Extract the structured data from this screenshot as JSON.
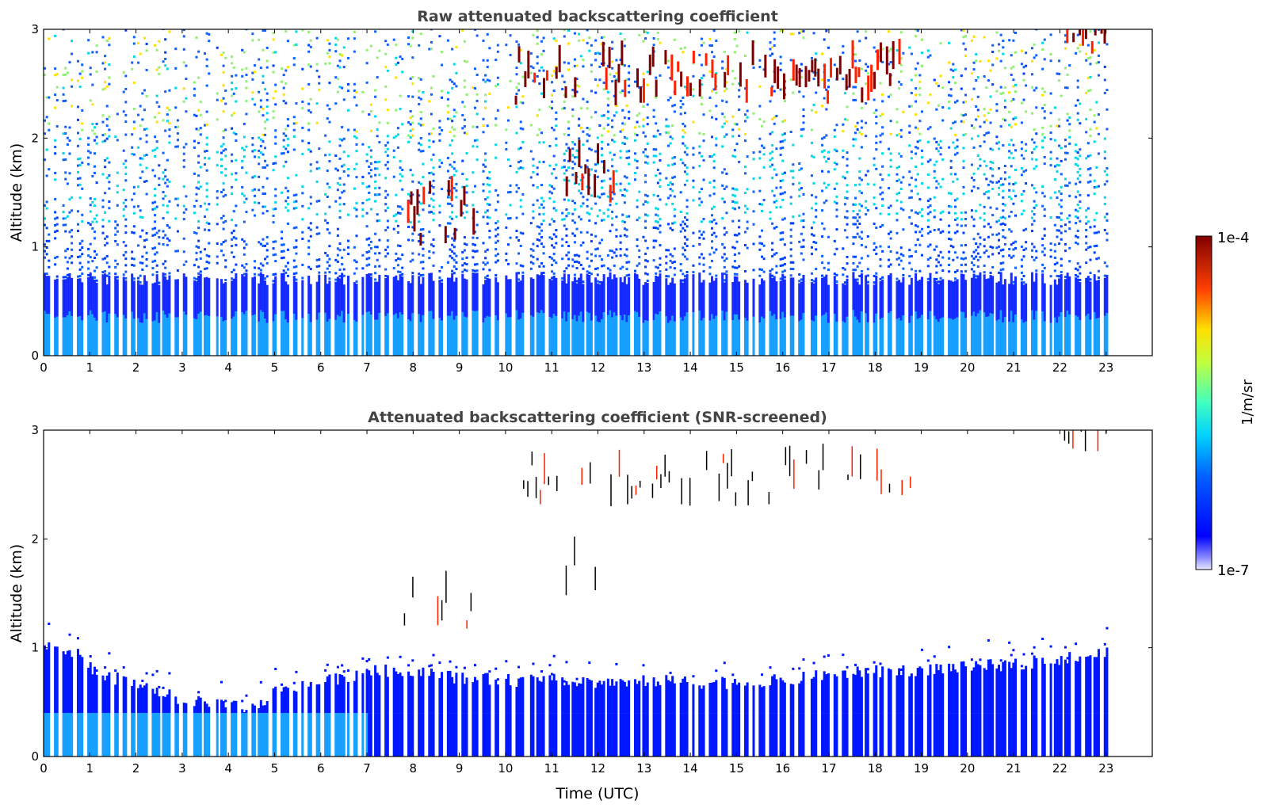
{
  "chart_data": [
    {
      "type": "heatmap",
      "title": "Raw attenuated backscattering coefficient",
      "xlabel": "",
      "ylabel": "Altitude (km)",
      "xlim": [
        0,
        24
      ],
      "ylim": [
        0,
        3
      ],
      "x_ticks": [
        "0",
        "1",
        "2",
        "3",
        "4",
        "5",
        "6",
        "7",
        "8",
        "9",
        "10",
        "11",
        "12",
        "13",
        "14",
        "15",
        "16",
        "17",
        "18",
        "19",
        "20",
        "21",
        "22",
        "23"
      ],
      "y_ticks": [
        "0",
        "1",
        "2",
        "3"
      ],
      "data_end_hour": 23,
      "description_regions": [
        {
          "feature": "surface aerosol layer",
          "x_range": [
            0,
            23
          ],
          "altitude_top_km": 0.5,
          "level": "low"
        },
        {
          "feature": "rising aerosol/cloud layer",
          "x_range": [
            7.8,
            9.5
          ],
          "altitude_km": [
            1.0,
            1.5
          ],
          "level": "high"
        },
        {
          "feature": "cloud layer",
          "x_range": [
            10.2,
            18.8
          ],
          "altitude_km": [
            2.3,
            2.7
          ],
          "level": "high"
        },
        {
          "feature": "lower cloud",
          "x_range": [
            11.3,
            12.4
          ],
          "altitude_km": [
            1.4,
            1.8
          ],
          "level": "high"
        },
        {
          "feature": "high cloud",
          "x_range": [
            22.0,
            23.0
          ],
          "altitude_km": [
            2.75,
            3.0
          ],
          "level": "high"
        }
      ]
    },
    {
      "type": "heatmap",
      "title": "Attenuated backscattering coefficient (SNR-screened)",
      "xlabel": "Time (UTC)",
      "ylabel": "Altitude (km)",
      "xlim": [
        0,
        24
      ],
      "ylim": [
        0,
        3
      ],
      "x_ticks": [
        "0",
        "1",
        "2",
        "3",
        "4",
        "5",
        "6",
        "7",
        "8",
        "9",
        "10",
        "11",
        "12",
        "13",
        "14",
        "15",
        "16",
        "17",
        "18",
        "19",
        "20",
        "21",
        "22",
        "23"
      ],
      "y_ticks": [
        "0",
        "1",
        "2",
        "3"
      ],
      "boundary_layer_top_km": [
        [
          0,
          1.0
        ],
        [
          0.8,
          0.95
        ],
        [
          1.0,
          0.8
        ],
        [
          2.0,
          0.65
        ],
        [
          3.0,
          0.52
        ],
        [
          4.0,
          0.46
        ],
        [
          4.6,
          0.43
        ],
        [
          5.0,
          0.62
        ],
        [
          6.0,
          0.68
        ],
        [
          7.0,
          0.78
        ],
        [
          8.0,
          0.8
        ],
        [
          9.0,
          0.72
        ],
        [
          10.0,
          0.7
        ],
        [
          11.0,
          0.7
        ],
        [
          12.0,
          0.68
        ],
        [
          13.0,
          0.7
        ],
        [
          14.0,
          0.68
        ],
        [
          15.0,
          0.68
        ],
        [
          16.0,
          0.7
        ],
        [
          17.0,
          0.75
        ],
        [
          18.0,
          0.78
        ],
        [
          19.0,
          0.8
        ],
        [
          20.0,
          0.82
        ],
        [
          21.0,
          0.85
        ],
        [
          22.0,
          0.9
        ],
        [
          23.0,
          0.95
        ]
      ]
    }
  ],
  "colorbar": {
    "label": "1/m/sr",
    "max_label": "1e-4",
    "min_label": "1e-7",
    "colormap": "jet"
  },
  "colors": {
    "dark_red": "#7f0000",
    "red": "#ff2000",
    "yellow": "#ffe000",
    "cyan": "#00d8e8",
    "blue": "#0018ff",
    "light_blue": "#18a0ff"
  }
}
